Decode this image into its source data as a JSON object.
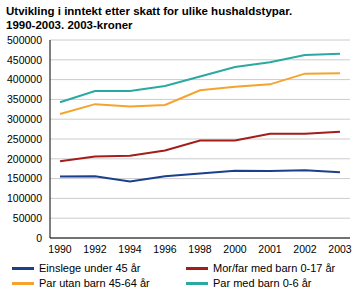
{
  "chart_data": {
    "type": "line",
    "title": "Utvikling i inntekt etter skatt for ulike hushaldstypar. 1990-2003. 2003-kroner",
    "categories": [
      "1990",
      "1992",
      "1994",
      "1996",
      "1998",
      "2000",
      "2001",
      "2002",
      "2003"
    ],
    "series": [
      {
        "name": "Einslege under 45 år",
        "color": "#1b3f8f",
        "values": [
          155000,
          156000,
          143000,
          156000,
          163000,
          170000,
          169000,
          171000,
          166000
        ]
      },
      {
        "name": "Mor/far med barn 0-17 år",
        "color": "#a31d1d",
        "values": [
          194000,
          206000,
          208000,
          221000,
          246000,
          246000,
          263000,
          263000,
          268000
        ]
      },
      {
        "name": "Par utan barn 45-64 år",
        "color": "#f5a32e",
        "values": [
          313000,
          338000,
          332000,
          336000,
          373000,
          382000,
          388000,
          415000,
          416000
        ]
      },
      {
        "name": "Par med barn 0-6 år",
        "color": "#2aa9a1",
        "values": [
          343000,
          371000,
          371000,
          384000,
          408000,
          432000,
          444000,
          462000,
          465000
        ]
      }
    ],
    "ylim": [
      0,
      500000
    ],
    "yticks": [
      0,
      50000,
      100000,
      150000,
      200000,
      250000,
      300000,
      350000,
      400000,
      450000,
      500000
    ],
    "grid": true,
    "legend": "bottom"
  }
}
